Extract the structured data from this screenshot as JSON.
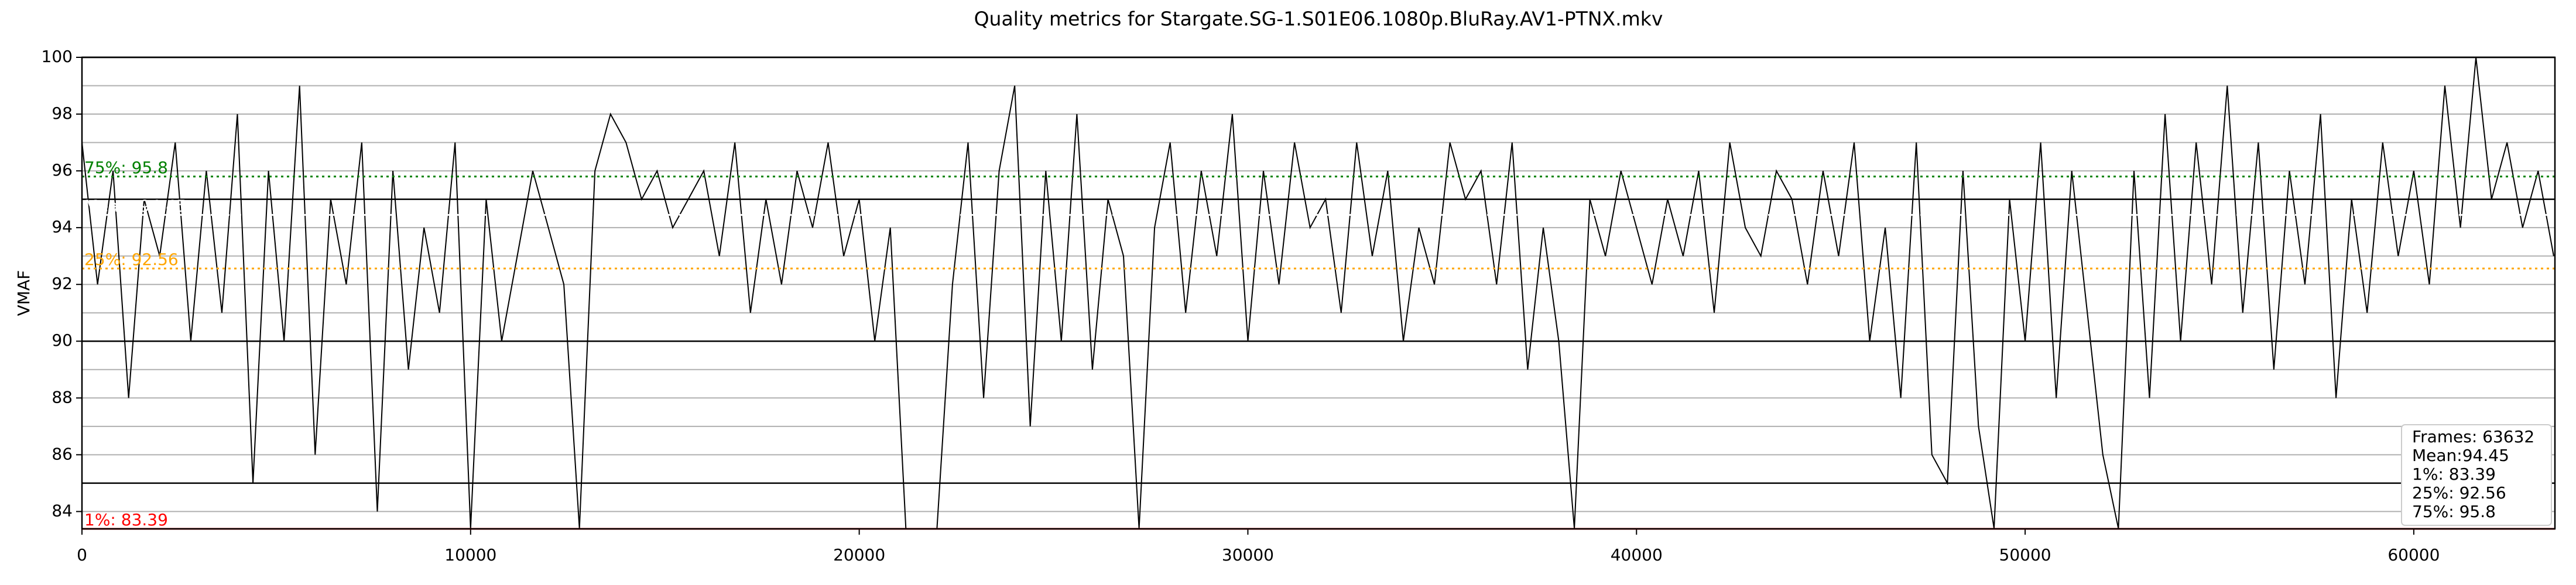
{
  "chart_data": {
    "type": "line",
    "title": "Quality metrics for Stargate.SG-1.S01E06.1080p.BluRay.AV1-PTNX.mkv",
    "y_label": "VMAF",
    "xlim": [
      0,
      63632
    ],
    "ylim": [
      83.39,
      100
    ],
    "xticks": [
      0,
      10000,
      20000,
      30000,
      40000,
      50000,
      60000
    ],
    "yticks": [
      84,
      86,
      88,
      90,
      92,
      94,
      96,
      98,
      100
    ],
    "ygrid_major": [
      85,
      90,
      95,
      100
    ],
    "ygrid_minor": [
      84,
      86,
      87,
      88,
      89,
      91,
      92,
      93,
      94,
      96,
      97,
      98,
      99
    ],
    "series": [
      {
        "color": "#000000",
        "x": [
          0,
          400,
          800,
          1200,
          1600,
          2000,
          2400,
          2800,
          3200,
          3600,
          4000,
          4400,
          4800,
          5200,
          5600,
          6000,
          6400,
          6800,
          7200,
          7600,
          8000,
          8400,
          8800,
          9200,
          9600,
          10000,
          10400,
          10800,
          11200,
          11600,
          12000,
          12400,
          12800,
          13200,
          13600,
          14000,
          14400,
          14800,
          15200,
          15600,
          16000,
          16400,
          16800,
          17200,
          17600,
          18000,
          18400,
          18800,
          19200,
          19600,
          20000,
          20400,
          20800,
          21200,
          21600,
          22000,
          22400,
          22800,
          23200,
          23600,
          24000,
          24400,
          24800,
          25200,
          25600,
          26000,
          26400,
          26800,
          27200,
          27600,
          28000,
          28400,
          28800,
          29200,
          29600,
          30000,
          30400,
          30800,
          31200,
          31600,
          32000,
          32400,
          32800,
          33200,
          33600,
          34000,
          34400,
          34800,
          35200,
          35600,
          36000,
          36400,
          36800,
          37200,
          37600,
          38000,
          38400,
          38800,
          39200,
          39600,
          40000,
          40400,
          40800,
          41200,
          41600,
          42000,
          42400,
          42800,
          43200,
          43600,
          44000,
          44400,
          44800,
          45200,
          45600,
          46000,
          46400,
          46800,
          47200,
          47600,
          48000,
          48400,
          48800,
          49200,
          49600,
          50000,
          50400,
          50800,
          51200,
          51600,
          52000,
          52400,
          52800,
          53200,
          53600,
          54000,
          54400,
          54800,
          55200,
          55600,
          56000,
          56400,
          56800,
          57200,
          57600,
          58000,
          58400,
          58800,
          59200,
          59600,
          60000,
          60400,
          60800,
          61200,
          61600,
          62000,
          62400,
          62800,
          63200,
          63600
        ],
        "values": [
          97,
          92,
          96,
          88,
          95,
          93,
          97,
          90,
          96,
          91,
          98,
          85,
          96,
          90,
          99,
          86,
          95,
          92,
          97,
          84,
          96,
          89,
          94,
          91,
          97,
          83.4,
          95,
          90,
          93,
          96,
          94,
          92,
          83.4,
          96,
          98,
          97,
          95,
          96,
          94,
          95,
          96,
          93,
          97,
          91,
          95,
          92,
          96,
          94,
          97,
          93,
          95,
          90,
          94,
          83.4,
          83.4,
          83.4,
          92,
          97,
          88,
          96,
          99,
          87,
          96,
          90,
          98,
          89,
          95,
          93,
          83.4,
          94,
          97,
          91,
          96,
          93,
          98,
          90,
          96,
          92,
          97,
          94,
          95,
          91,
          97,
          93,
          96,
          90,
          94,
          92,
          97,
          95,
          96,
          92,
          97,
          89,
          94,
          90,
          83.4,
          95,
          93,
          96,
          94,
          92,
          95,
          93,
          96,
          91,
          97,
          94,
          93,
          96,
          95,
          92,
          96,
          93,
          97,
          90,
          94,
          88,
          97,
          86,
          85,
          96,
          87,
          83.4,
          95,
          90,
          97,
          88,
          96,
          91,
          86,
          83.4,
          96,
          88,
          98,
          90,
          97,
          92,
          99,
          91,
          97,
          89,
          96,
          92,
          98,
          88,
          95,
          91,
          97,
          93,
          96,
          92,
          99,
          94,
          100,
          95,
          97,
          94,
          96,
          93
        ]
      }
    ],
    "reference_lines": [
      {
        "label": "75%: 95.8",
        "value": 95.8,
        "color": "#008000",
        "style": "dotted"
      },
      {
        "label": "Mean: 94.45",
        "value": 94.45,
        "color": "#ffffff",
        "style": "dashed"
      },
      {
        "label": "25%: 92.56",
        "value": 92.56,
        "color": "#ffa500",
        "style": "dotted"
      },
      {
        "label": "1%: 83.39",
        "value": 83.39,
        "color": "#ff0000",
        "style": "solid"
      }
    ],
    "stats_box": [
      "Frames: 63632",
      "Mean:94.45",
      "1%: 83.39",
      "25%: 92.56",
      "75%: 95.8"
    ]
  }
}
